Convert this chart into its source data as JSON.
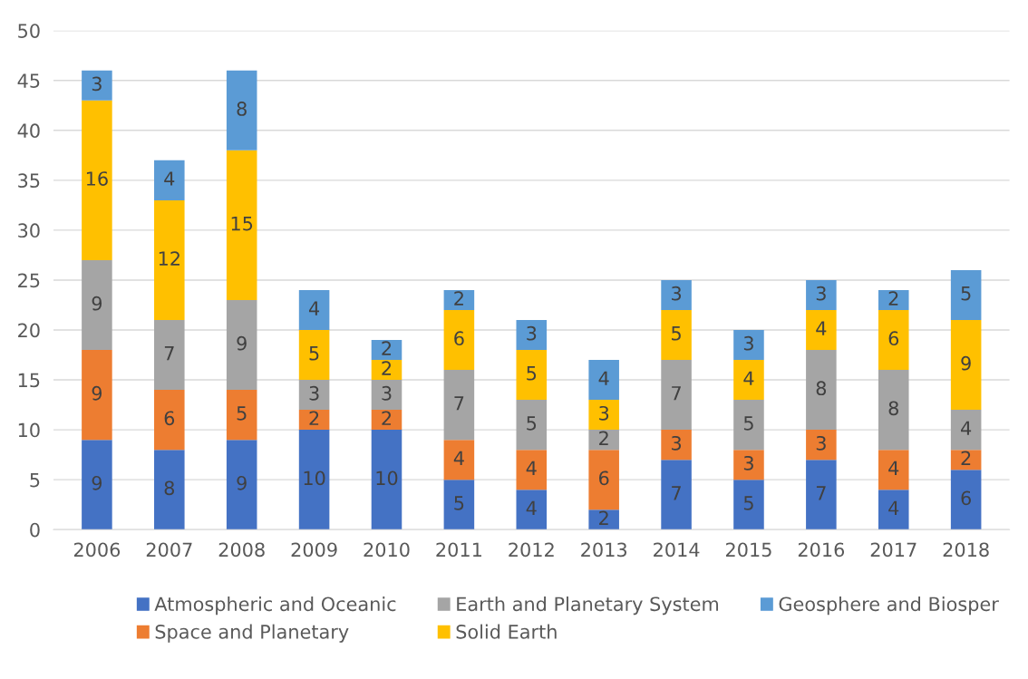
{
  "chart_data": {
    "type": "bar",
    "stacked": true,
    "data_labels": true,
    "grid": "y",
    "legend": "bottom",
    "categories": [
      "2006",
      "2007",
      "2008",
      "2009",
      "2010",
      "2011",
      "2012",
      "2013",
      "2014",
      "2015",
      "2016",
      "2017",
      "2018"
    ],
    "ylim": [
      0,
      50
    ],
    "yticks": [
      0,
      5,
      10,
      15,
      20,
      25,
      30,
      35,
      40,
      45,
      50
    ],
    "series": [
      {
        "name": "Atmospheric and Oceanic",
        "color": "#4472c4",
        "values": [
          9,
          8,
          9,
          10,
          10,
          5,
          4,
          2,
          7,
          5,
          7,
          4,
          6
        ]
      },
      {
        "name": "Space and Planetary",
        "color": "#ed7d31",
        "values": [
          9,
          6,
          5,
          2,
          2,
          4,
          4,
          6,
          3,
          3,
          3,
          4,
          2
        ]
      },
      {
        "name": "Earth and Planetary System",
        "color": "#a5a5a5",
        "values": [
          9,
          7,
          9,
          3,
          3,
          7,
          5,
          2,
          7,
          5,
          8,
          8,
          4
        ]
      },
      {
        "name": "Solid Earth",
        "color": "#ffc000",
        "values": [
          16,
          12,
          15,
          5,
          2,
          6,
          5,
          3,
          5,
          4,
          4,
          6,
          9
        ]
      },
      {
        "name": "Geosphere and Biosper",
        "color": "#5b9bd5",
        "values": [
          3,
          4,
          8,
          4,
          2,
          2,
          3,
          4,
          3,
          3,
          3,
          2,
          5
        ]
      }
    ]
  }
}
